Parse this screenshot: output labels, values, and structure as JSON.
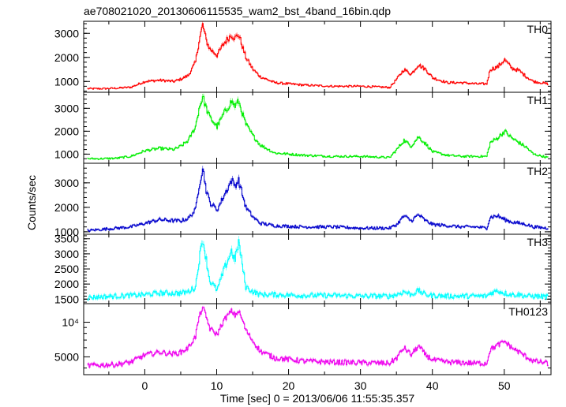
{
  "title": "ae708021020_20130606115535_wam2_bst_4band_16bin.qdp",
  "chart_data": {
    "type": "line",
    "title": "ae708021020_20130606115535_wam2_bst_4band_16bin.qdp",
    "xlabel": "Time [sec] 0 = 2013/06/06 11:55:35.357",
    "ylabel": "Counts/sec",
    "xlim": [
      -8.5,
      56.5
    ],
    "x_ticks": [
      0,
      10,
      20,
      30,
      40,
      50
    ],
    "grid": false,
    "series": [
      {
        "name": "TH0",
        "color": "#ff0000",
        "ylim": [
          550,
          3500
        ],
        "scale": "linear",
        "y_ticks": [
          {
            "v": 1000,
            "label": "1000"
          },
          {
            "v": 2000,
            "label": "2000"
          },
          {
            "v": 3000,
            "label": "3000"
          }
        ],
        "x": [
          -8,
          -6,
          -4,
          -2,
          0,
          2,
          4,
          5,
          6,
          7,
          7.5,
          8,
          8.5,
          9,
          10,
          11,
          12,
          12.5,
          13,
          14,
          15,
          16,
          18,
          22,
          26,
          30,
          34,
          35,
          36,
          37,
          38,
          39,
          40,
          42,
          44,
          46,
          47.5,
          48,
          49,
          50,
          51,
          52,
          53,
          54,
          56
        ],
        "values": [
          700,
          700,
          720,
          760,
          1000,
          1050,
          1000,
          1100,
          1250,
          1800,
          2700,
          3350,
          2700,
          2350,
          2100,
          2600,
          2950,
          2800,
          2950,
          2000,
          1500,
          1200,
          950,
          850,
          800,
          800,
          750,
          1100,
          1500,
          1300,
          1700,
          1500,
          1150,
          950,
          950,
          900,
          900,
          1500,
          1600,
          1900,
          1550,
          1450,
          1200,
          1000,
          900
        ]
      },
      {
        "name": "TH1",
        "color": "#00ee00",
        "ylim": [
          600,
          3700
        ],
        "scale": "linear",
        "y_ticks": [
          {
            "v": 1000,
            "label": "1000"
          },
          {
            "v": 2000,
            "label": "2000"
          },
          {
            "v": 3000,
            "label": "3000"
          }
        ],
        "x": [
          -8,
          -6,
          -4,
          -2,
          0,
          2,
          4,
          5,
          6,
          7,
          7.5,
          8,
          8.5,
          9,
          10,
          11,
          12,
          12.5,
          13,
          14,
          15,
          16,
          18,
          22,
          26,
          30,
          34,
          35,
          36,
          37,
          38,
          39,
          40,
          42,
          44,
          46,
          47.5,
          48,
          49,
          50,
          51,
          52,
          53,
          54,
          56
        ],
        "values": [
          800,
          800,
          820,
          900,
          1150,
          1250,
          1200,
          1350,
          1600,
          2200,
          3000,
          3500,
          3000,
          2600,
          2200,
          2800,
          3300,
          3100,
          3300,
          2300,
          1800,
          1400,
          1050,
          950,
          900,
          900,
          850,
          1200,
          1600,
          1350,
          1750,
          1450,
          1100,
          950,
          900,
          900,
          900,
          1500,
          1700,
          2000,
          1700,
          1500,
          1300,
          1000,
          850
        ]
      },
      {
        "name": "TH2",
        "color": "#0000cc",
        "ylim": [
          900,
          3800
        ],
        "scale": "linear",
        "y_ticks": [
          {
            "v": 1000,
            "label": "1000"
          },
          {
            "v": 2000,
            "label": "2000"
          },
          {
            "v": 3000,
            "label": "3000"
          }
        ],
        "x": [
          -8,
          -6,
          -4,
          -2,
          0,
          2,
          4,
          5,
          6,
          7,
          7.5,
          8,
          8.5,
          9,
          10,
          11,
          12,
          12.5,
          13,
          14,
          15,
          16,
          18,
          22,
          26,
          30,
          34,
          35,
          36,
          37,
          38,
          39,
          40,
          42,
          44,
          46,
          47.5,
          48,
          49,
          50,
          51,
          52,
          53,
          54,
          56
        ],
        "values": [
          1050,
          1100,
          1150,
          1200,
          1350,
          1500,
          1450,
          1450,
          1550,
          1900,
          2900,
          3600,
          2700,
          2200,
          1900,
          2500,
          3100,
          2900,
          3100,
          2000,
          1600,
          1350,
          1250,
          1200,
          1200,
          1150,
          1150,
          1300,
          1650,
          1450,
          1700,
          1450,
          1300,
          1250,
          1200,
          1200,
          1150,
          1600,
          1650,
          1500,
          1400,
          1350,
          1300,
          1200,
          1150
        ]
      },
      {
        "name": "TH3",
        "color": "#00ffff",
        "ylim": [
          1350,
          3650
        ],
        "scale": "linear",
        "y_ticks": [
          {
            "v": 1500,
            "label": "1500"
          },
          {
            "v": 2000,
            "label": "2000"
          },
          {
            "v": 2500,
            "label": "2500"
          },
          {
            "v": 3000,
            "label": "3000"
          },
          {
            "v": 3500,
            "label": "3500"
          }
        ],
        "x": [
          -8,
          -6,
          -4,
          -2,
          0,
          2,
          4,
          5,
          6,
          7,
          7.5,
          8,
          8.5,
          9,
          10,
          11,
          12,
          12.5,
          13,
          14,
          15,
          16,
          18,
          22,
          26,
          30,
          34,
          35,
          36,
          37,
          38,
          39,
          40,
          42,
          44,
          46,
          47.5,
          48,
          49,
          50,
          51,
          52,
          53,
          54,
          56
        ],
        "values": [
          1550,
          1580,
          1600,
          1620,
          1650,
          1700,
          1700,
          1700,
          1750,
          1900,
          2800,
          3500,
          2800,
          2100,
          1800,
          2500,
          3100,
          2800,
          3400,
          1900,
          1750,
          1650,
          1650,
          1620,
          1620,
          1600,
          1600,
          1650,
          1750,
          1650,
          1780,
          1650,
          1620,
          1600,
          1600,
          1600,
          1600,
          1700,
          1780,
          1700,
          1650,
          1650,
          1600,
          1600,
          1580
        ]
      },
      {
        "name": "TH0123",
        "color": "#ee00ee",
        "ylim": [
          3500,
          14500
        ],
        "scale": "log",
        "y_ticks": [
          {
            "v": 5000,
            "label": "5000"
          },
          {
            "v": 10000,
            "label": "10⁴"
          }
        ],
        "x": [
          -8,
          -6,
          -4,
          -2,
          0,
          2,
          4,
          5,
          6,
          7,
          7.5,
          8,
          8.5,
          9,
          10,
          11,
          12,
          12.5,
          13,
          14,
          15,
          16,
          18,
          22,
          26,
          30,
          34,
          35,
          36,
          37,
          38,
          39,
          40,
          42,
          44,
          46,
          47.5,
          48,
          49,
          50,
          51,
          52,
          53,
          54,
          56
        ],
        "values": [
          4200,
          4250,
          4300,
          4500,
          5200,
          5500,
          5300,
          5500,
          6000,
          7500,
          11000,
          13500,
          11000,
          8800,
          7800,
          10500,
          12500,
          11500,
          12500,
          8500,
          6800,
          5600,
          4900,
          4600,
          4500,
          4450,
          4400,
          4900,
          6000,
          5200,
          6200,
          5200,
          4700,
          4500,
          4450,
          4400,
          4400,
          5800,
          6300,
          6800,
          6000,
          5500,
          5000,
          4600,
          4400
        ]
      }
    ]
  }
}
